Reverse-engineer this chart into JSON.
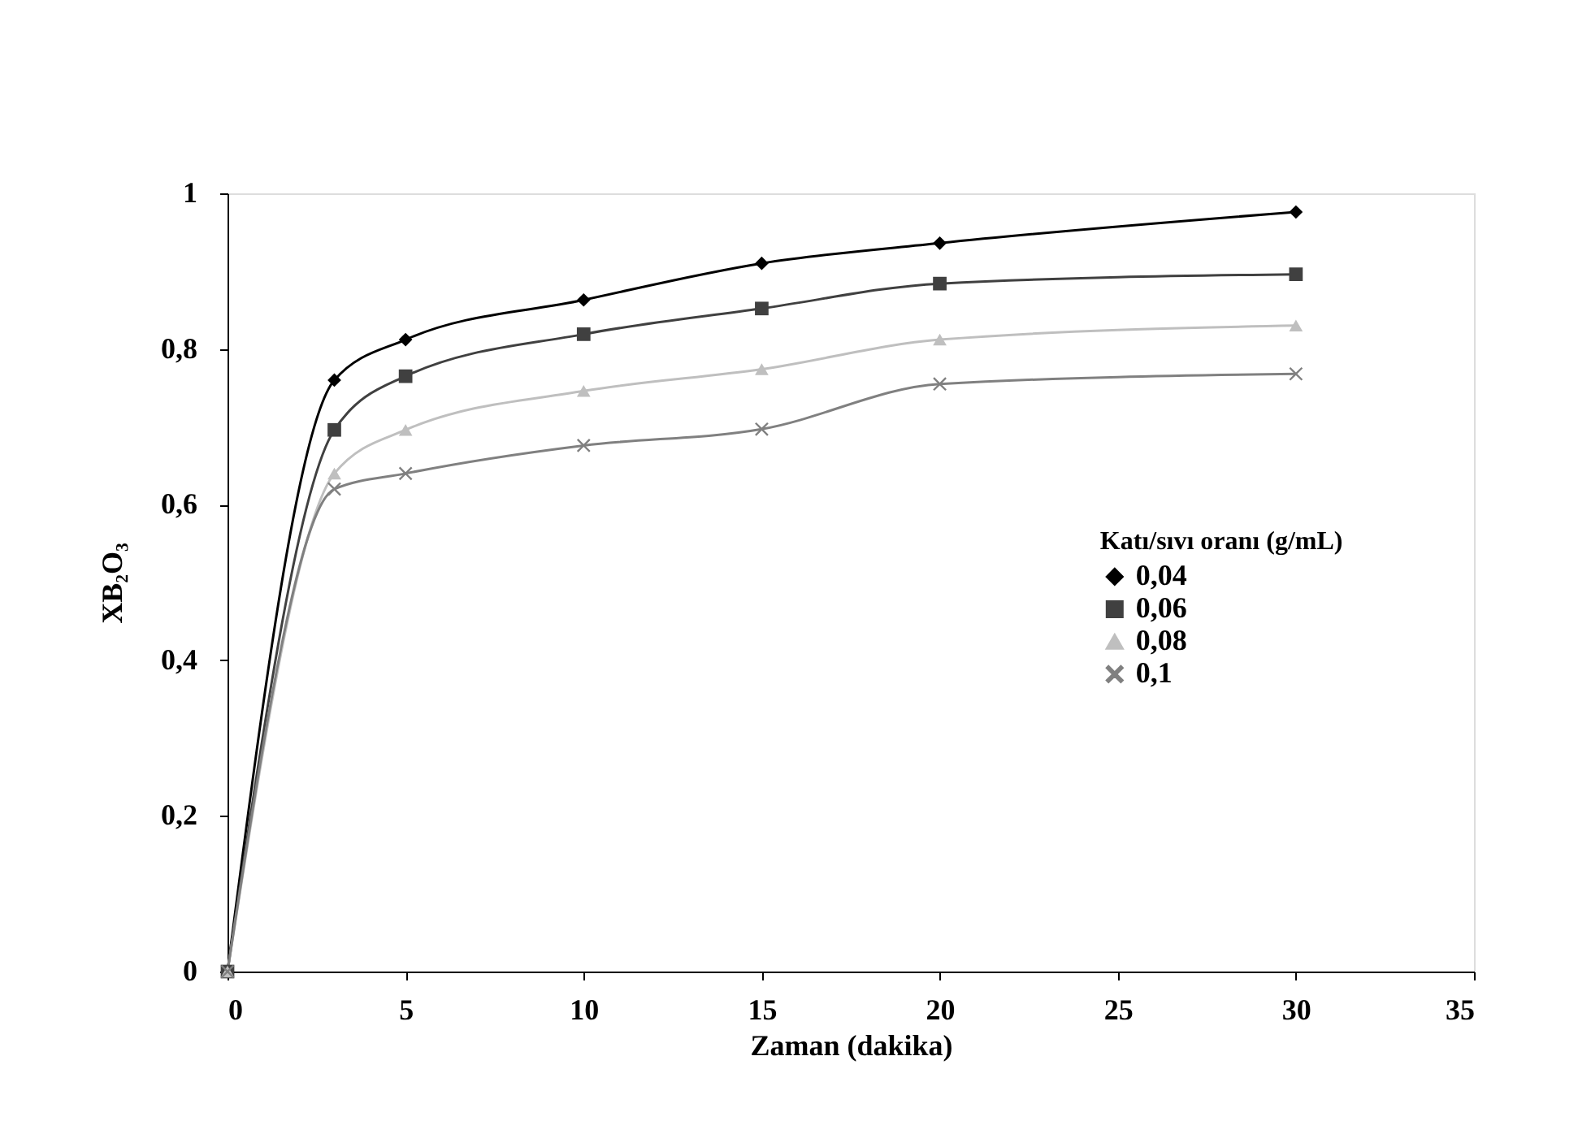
{
  "chart_data": {
    "type": "line",
    "xlabel": "Zaman (dakika)",
    "ylabel": "XB₂O₃",
    "legend_title": "Katı/sıvı oranı (g/mL)",
    "x": [
      0,
      3,
      5,
      10,
      15,
      20,
      30
    ],
    "series": [
      {
        "name": "0,04",
        "color": "#000000",
        "marker": "diamond",
        "values": [
          0,
          0.76,
          0.812,
          0.863,
          0.91,
          0.936,
          0.976
        ]
      },
      {
        "name": "0,06",
        "color": "#404040",
        "marker": "square",
        "values": [
          0,
          0.696,
          0.765,
          0.819,
          0.852,
          0.884,
          0.896
        ]
      },
      {
        "name": "0,08",
        "color": "#bfbfbf",
        "marker": "triangle",
        "values": [
          0,
          0.64,
          0.696,
          0.746,
          0.774,
          0.812,
          0.83
        ]
      },
      {
        "name": "0,1",
        "color": "#808080",
        "marker": "cross",
        "values": [
          0,
          0.62,
          0.64,
          0.676,
          0.697,
          0.755,
          0.768
        ]
      }
    ],
    "xlim": [
      0,
      35
    ],
    "xticks": [
      0,
      5,
      10,
      15,
      20,
      25,
      30,
      35
    ],
    "ylim": [
      0,
      1
    ],
    "yticks": [
      0,
      {
        "value": 0.2,
        "label": "0,2"
      },
      {
        "value": 0.4,
        "label": "0,4"
      },
      {
        "value": 0.6,
        "label": "0,6"
      },
      {
        "value": 0.8,
        "label": "0,8"
      },
      1
    ],
    "grid": false,
    "legend": "right",
    "line_style": "solid"
  }
}
